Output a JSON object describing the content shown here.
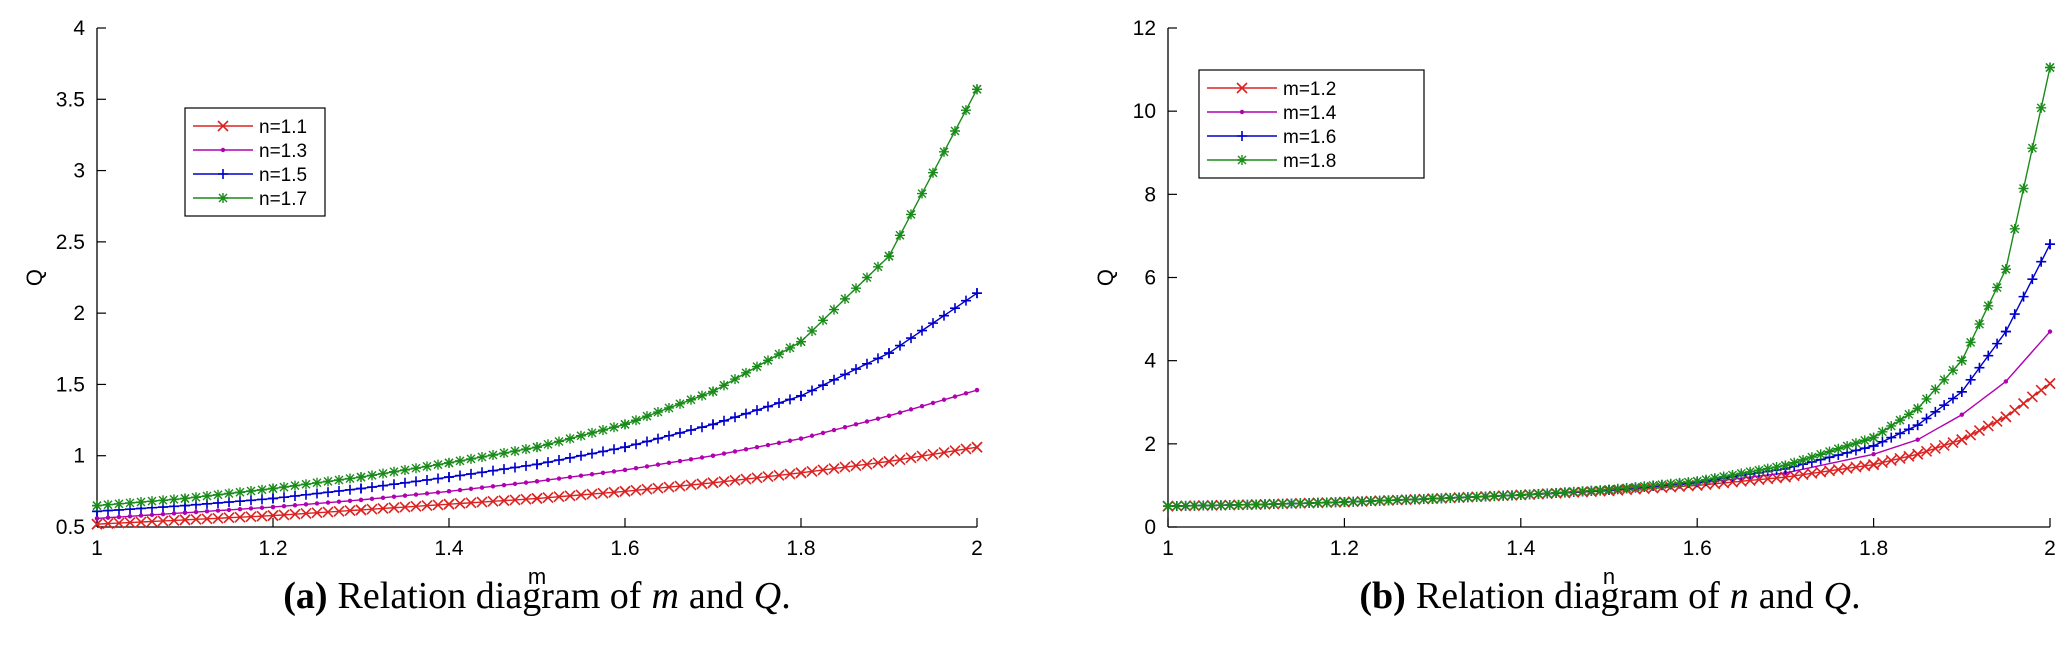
{
  "chart_data": [
    {
      "type": "line",
      "caption": {
        "tag": "(a)",
        "text_before": "Relation diagram of",
        "var1": "m",
        "text_mid": "and",
        "var2": "Q",
        "text_after": "."
      },
      "xlabel": "m",
      "ylabel": "Q",
      "xlim": [
        1,
        2
      ],
      "ylim": [
        0.5,
        4
      ],
      "xticks": [
        "1",
        "1.2",
        "1.4",
        "1.6",
        "1.8",
        "2"
      ],
      "yticks": [
        "0.5",
        "1",
        "1.5",
        "2",
        "2.5",
        "3",
        "3.5",
        "4"
      ],
      "grid": false,
      "legend_position": "top-left",
      "series": [
        {
          "name": "n=1.1",
          "color": "#dd2222",
          "marker": "x",
          "x": [
            1,
            1.1,
            1.2,
            1.3,
            1.4,
            1.5,
            1.6,
            1.7,
            1.8,
            1.9,
            2
          ],
          "values": [
            0.52,
            0.55,
            0.58,
            0.62,
            0.66,
            0.7,
            0.75,
            0.81,
            0.88,
            0.96,
            1.06
          ]
        },
        {
          "name": "n=1.3",
          "color": "#b000b0",
          "marker": "dot",
          "x": [
            1,
            1.1,
            1.2,
            1.3,
            1.4,
            1.5,
            1.6,
            1.7,
            1.8,
            1.9,
            2
          ],
          "values": [
            0.56,
            0.6,
            0.64,
            0.69,
            0.75,
            0.82,
            0.9,
            1.0,
            1.12,
            1.28,
            1.46
          ]
        },
        {
          "name": "n=1.5",
          "color": "#0000cc",
          "marker": "plus",
          "x": [
            1,
            1.1,
            1.2,
            1.3,
            1.4,
            1.5,
            1.6,
            1.7,
            1.8,
            1.9,
            2
          ],
          "values": [
            0.61,
            0.65,
            0.7,
            0.77,
            0.85,
            0.94,
            1.06,
            1.22,
            1.42,
            1.72,
            2.14
          ]
        },
        {
          "name": "n=1.7",
          "color": "#1a8c1a",
          "marker": "star",
          "x": [
            1,
            1.1,
            1.2,
            1.3,
            1.4,
            1.5,
            1.6,
            1.7,
            1.8,
            1.9,
            2
          ],
          "values": [
            0.65,
            0.7,
            0.77,
            0.85,
            0.95,
            1.06,
            1.22,
            1.45,
            1.8,
            2.4,
            3.57
          ]
        }
      ]
    },
    {
      "type": "line",
      "caption": {
        "tag": "(b)",
        "text_before": "Relation diagram of",
        "var1": "n",
        "text_mid": "and",
        "var2": "Q",
        "text_after": "."
      },
      "xlabel": "n",
      "ylabel": "Q",
      "xlim": [
        1,
        2
      ],
      "ylim": [
        0,
        12
      ],
      "xticks": [
        "1",
        "1.2",
        "1.4",
        "1.6",
        "1.8",
        "2"
      ],
      "yticks": [
        "0",
        "2",
        "4",
        "6",
        "8",
        "10",
        "12"
      ],
      "grid": false,
      "legend_position": "top-left",
      "series": [
        {
          "name": "m=1.2",
          "color": "#dd2222",
          "marker": "x",
          "x": [
            1,
            1.1,
            1.2,
            1.3,
            1.4,
            1.5,
            1.6,
            1.7,
            1.8,
            1.85,
            1.9,
            1.95,
            2
          ],
          "values": [
            0.5,
            0.54,
            0.6,
            0.68,
            0.77,
            0.87,
            1.0,
            1.2,
            1.5,
            1.75,
            2.1,
            2.65,
            3.45
          ]
        },
        {
          "name": "m=1.4",
          "color": "#b000b0",
          "marker": "none",
          "x": [
            1,
            1.1,
            1.2,
            1.3,
            1.4,
            1.5,
            1.6,
            1.7,
            1.8,
            1.85,
            1.9,
            1.95,
            2
          ],
          "values": [
            0.5,
            0.54,
            0.6,
            0.68,
            0.77,
            0.88,
            1.05,
            1.3,
            1.75,
            2.1,
            2.7,
            3.5,
            4.7
          ]
        },
        {
          "name": "m=1.6",
          "color": "#0000cc",
          "marker": "plus",
          "x": [
            1,
            1.1,
            1.2,
            1.3,
            1.4,
            1.5,
            1.6,
            1.7,
            1.8,
            1.85,
            1.9,
            1.95,
            2
          ],
          "values": [
            0.5,
            0.54,
            0.6,
            0.68,
            0.77,
            0.89,
            1.08,
            1.4,
            1.95,
            2.45,
            3.25,
            4.7,
            6.8
          ]
        },
        {
          "name": "m=1.8",
          "color": "#1a8c1a",
          "marker": "star",
          "x": [
            1,
            1.1,
            1.2,
            1.3,
            1.4,
            1.5,
            1.6,
            1.7,
            1.8,
            1.85,
            1.9,
            1.95,
            2
          ],
          "values": [
            0.5,
            0.54,
            0.6,
            0.68,
            0.77,
            0.9,
            1.1,
            1.48,
            2.15,
            2.85,
            4.0,
            6.2,
            11.05
          ]
        }
      ]
    }
  ]
}
